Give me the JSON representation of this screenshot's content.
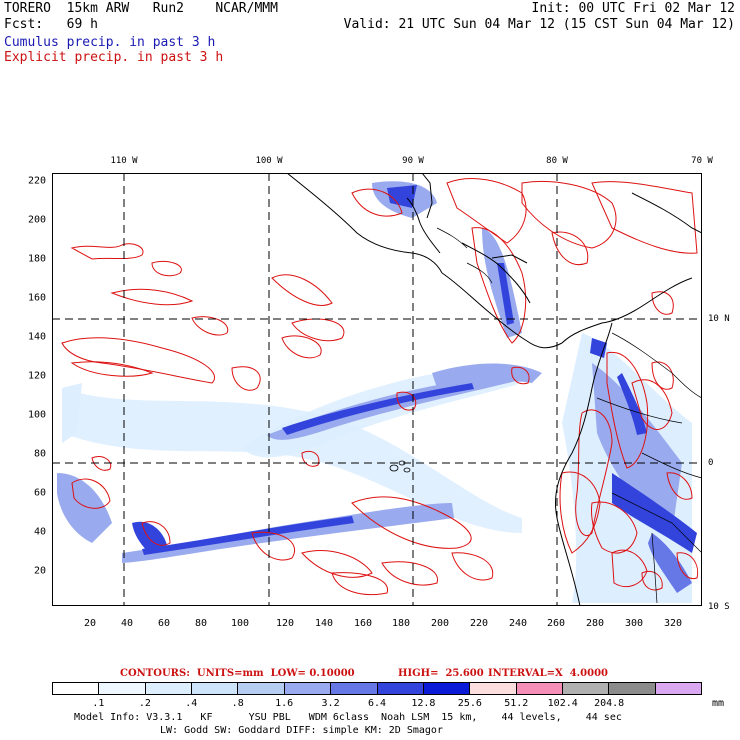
{
  "header": {
    "left_line1": "TORERO  15km ARW   Run2    NCAR/MMM",
    "left_line2": "Fcst:   69 h",
    "right_line1": "Init: 00 UTC Fri 02 Mar 12",
    "right_line2": "Valid: 21 UTC Sun 04 Mar 12 (15 CST Sun 04 Mar 12)",
    "legend_cumulus": "Cumulus precip. in past 3 h",
    "legend_explicit": "Explicit precip. in past 3 h"
  },
  "map": {
    "lon_labels": [
      "110 W",
      "100 W",
      "90 W",
      "80 W",
      "70 W"
    ],
    "lat_labels": [
      "10 N",
      "0",
      "10 S"
    ],
    "y_ticks": [
      "220",
      "200",
      "180",
      "160",
      "140",
      "120",
      "100",
      "80",
      "60",
      "40",
      "20"
    ],
    "x_ticks": [
      "20",
      "40",
      "60",
      "80",
      "100",
      "120",
      "140",
      "160",
      "180",
      "200",
      "220",
      "240",
      "260",
      "280",
      "300",
      "320"
    ],
    "colors": {
      "coast": "#000000",
      "grid": "#000000",
      "explicit_contour": "#dd1111",
      "cumulus_light": "#ddeeff",
      "cumulus_mid": "#99aaee",
      "cumulus_dark": "#3344dd"
    }
  },
  "contours": {
    "units": "CONTOURS:  UNITS=mm  LOW= 0.10000",
    "high": "HIGH=  25.600",
    "interval": "INTERVAL=X  4.0000"
  },
  "colorbar": {
    "labels": [
      ".1",
      ".2",
      ".4",
      ".8",
      "1.6",
      "3.2",
      "6.4",
      "12.8",
      "25.6",
      "51.2",
      "102.4",
      "204.8"
    ],
    "unit": "mm",
    "colors": [
      "#ffffff",
      "#eef6ff",
      "#ddeeff",
      "#cde4fb",
      "#b6cdf2",
      "#99aaee",
      "#6677e6",
      "#3344dd",
      "#0a1ad6",
      "#fcdede",
      "#f58fb8",
      "#b0b0b0",
      "#8c8c8c",
      "#d9a8f0"
    ]
  },
  "footer": {
    "line1": "Model Info: V3.3.1   KF      YSU PBL   WDM 6class  Noah LSM  15 km,    44 levels,    44 sec",
    "line2": "LW: Godd SW: Goddard DIFF: simple KM: 2D Smagor"
  }
}
